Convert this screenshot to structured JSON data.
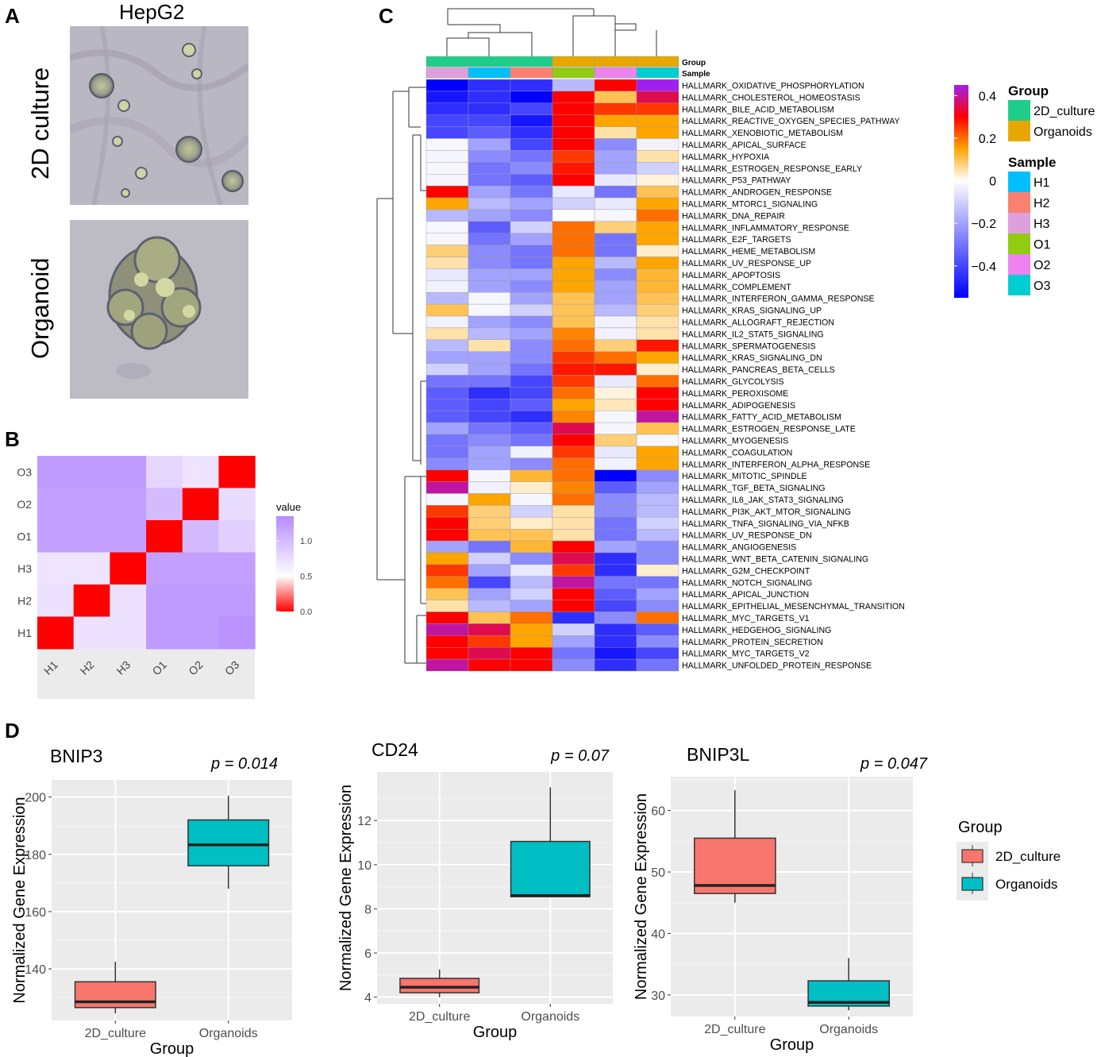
{
  "panels": {
    "a": "A",
    "b": "B",
    "c": "C",
    "d": "D"
  },
  "panel_a": {
    "title": "HepG2",
    "row_labels": [
      "2D culture",
      "Organoid"
    ]
  },
  "colors": {
    "group_2d": "#20CC8A",
    "group_org": "#E6A800",
    "H1": "#00BFFF",
    "H2": "#FA8072",
    "H3": "#DDA0DD",
    "O1": "#8FCC12",
    "O2": "#EE82EE",
    "O3": "#00CED1",
    "box_2d": "#F8766D",
    "box_org": "#00BFC4",
    "panel_bg": "#EBEBEB"
  },
  "chart_data": [
    {
      "id": "B",
      "type": "heatmap",
      "x_labels": [
        "H1",
        "H2",
        "H3",
        "O1",
        "O2",
        "O3"
      ],
      "y_labels": [
        "O3",
        "O2",
        "O1",
        "H3",
        "H2",
        "H1"
      ],
      "values": [
        [
          1.25,
          1.25,
          1.25,
          0.8,
          0.7,
          0.0
        ],
        [
          1.2,
          1.2,
          1.2,
          1.0,
          0.0,
          0.75
        ],
        [
          1.2,
          1.2,
          1.2,
          0.0,
          1.0,
          0.85
        ],
        [
          0.7,
          0.7,
          0.0,
          1.2,
          1.2,
          1.2
        ],
        [
          0.72,
          0.0,
          0.72,
          1.25,
          1.25,
          1.25
        ],
        [
          0.0,
          0.72,
          0.72,
          1.25,
          1.25,
          1.3
        ]
      ],
      "legend_title": "value",
      "legend_ticks": [
        "1.0",
        "0.5",
        "0.0"
      ],
      "range": [
        0,
        1.35
      ]
    },
    {
      "id": "C",
      "type": "heatmap",
      "columns": [
        "H3",
        "H1",
        "H2",
        "O1",
        "O2",
        "O3"
      ],
      "column_groups": [
        "2D_culture",
        "2D_culture",
        "2D_culture",
        "Organoids",
        "Organoids",
        "Organoids"
      ],
      "annotation_row_labels": [
        "Group",
        "Sample"
      ],
      "rows": [
        "HALLMARK_OXIDATIVE_PHOSPHORYLATION",
        "HALLMARK_CHOLESTEROL_HOMEOSTASIS",
        "HALLMARK_BILE_ACID_METABOLISM",
        "HALLMARK_REACTIVE_OXYGEN_SPECIES_PATHWAY",
        "HALLMARK_XENOBIOTIC_METABOLISM",
        "HALLMARK_APICAL_SURFACE",
        "HALLMARK_HYPOXIA",
        "HALLMARK_ESTROGEN_RESPONSE_EARLY",
        "HALLMARK_P53_PATHWAY",
        "HALLMARK_ANDROGEN_RESPONSE",
        "HALLMARK_MTORC1_SIGNALING",
        "HALLMARK_DNA_REPAIR",
        "HALLMARK_INFLAMMATORY_RESPONSE",
        "HALLMARK_E2F_TARGETS",
        "HALLMARK_HEME_METABOLISM",
        "HALLMARK_UV_RESPONSE_UP",
        "HALLMARK_APOPTOSIS",
        "HALLMARK_COMPLEMENT",
        "HALLMARK_INTERFERON_GAMMA_RESPONSE",
        "HALLMARK_KRAS_SIGNALING_UP",
        "HALLMARK_ALLOGRAFT_REJECTION",
        "HALLMARK_IL2_STAT5_SIGNALING",
        "HALLMARK_SPERMATOGENESIS",
        "HALLMARK_KRAS_SIGNALING_DN",
        "HALLMARK_PANCREAS_BETA_CELLS",
        "HALLMARK_GLYCOLYSIS",
        "HALLMARK_PEROXISOME",
        "HALLMARK_ADIPOGENESIS",
        "HALLMARK_FATTY_ACID_METABOLISM",
        "HALLMARK_ESTROGEN_RESPONSE_LATE",
        "HALLMARK_MYOGENESIS",
        "HALLMARK_COAGULATION",
        "HALLMARK_INTERFERON_ALPHA_RESPONSE",
        "HALLMARK_MITOTIC_SPINDLE",
        "HALLMARK_TGF_BETA_SIGNALING",
        "HALLMARK_IL6_JAK_STAT3_SIGNALING",
        "HALLMARK_PI3K_AKT_MTOR_SIGNALING",
        "HALLMARK_TNFA_SIGNALING_VIA_NFKB",
        "HALLMARK_UV_RESPONSE_DN",
        "HALLMARK_ANGIOGENESIS",
        "HALLMARK_WNT_BETA_CATENIN_SIGNALING",
        "HALLMARK_G2M_CHECKPOINT",
        "HALLMARK_NOTCH_SIGNALING",
        "HALLMARK_APICAL_JUNCTION",
        "HALLMARK_EPITHELIAL_MESENCHYMAL_TRANSITION",
        "HALLMARK_MYC_TARGETS_V1",
        "HALLMARK_HEDGEHOG_SIGNALING",
        "HALLMARK_PROTEIN_SECRETION",
        "HALLMARK_MYC_TARGETS_V2",
        "HALLMARK_UNFOLDED_PROTEIN_RESPONSE"
      ],
      "values": [
        [
          -0.55,
          -0.45,
          -0.45,
          -0.15,
          0.3,
          0.45
        ],
        [
          -0.5,
          -0.45,
          -0.55,
          0.3,
          0.1,
          0.35
        ],
        [
          -0.45,
          -0.45,
          -0.4,
          0.3,
          0.25,
          0.25
        ],
        [
          -0.4,
          -0.4,
          -0.5,
          0.3,
          0.15,
          0.15
        ],
        [
          -0.4,
          -0.35,
          -0.45,
          0.3,
          0.05,
          0.15
        ],
        [
          -0.02,
          -0.2,
          -0.4,
          0.3,
          -0.25,
          -0.03
        ],
        [
          -0.02,
          -0.25,
          -0.3,
          0.25,
          -0.2,
          0.05
        ],
        [
          -0.02,
          -0.3,
          -0.25,
          0.28,
          -0.2,
          -0.1
        ],
        [
          -0.02,
          -0.3,
          -0.35,
          0.3,
          -0.05,
          0.02
        ],
        [
          0.3,
          -0.2,
          -0.3,
          -0.05,
          -0.3,
          0.1
        ],
        [
          0.15,
          -0.15,
          -0.2,
          -0.1,
          -0.05,
          0.15
        ],
        [
          -0.15,
          -0.2,
          -0.25,
          0.0,
          -0.02,
          0.2
        ],
        [
          -0.02,
          -0.35,
          -0.1,
          0.2,
          0.08,
          0.15
        ],
        [
          -0.02,
          -0.3,
          -0.2,
          0.2,
          -0.3,
          0.15
        ],
        [
          0.08,
          -0.25,
          -0.3,
          0.2,
          -0.3,
          0.03
        ],
        [
          0.05,
          -0.25,
          -0.3,
          0.15,
          -0.15,
          0.15
        ],
        [
          -0.05,
          -0.2,
          -0.2,
          0.15,
          -0.25,
          0.12
        ],
        [
          -0.03,
          -0.2,
          -0.25,
          0.15,
          -0.2,
          0.12
        ],
        [
          -0.15,
          -0.02,
          -0.2,
          0.1,
          -0.2,
          0.1
        ],
        [
          0.1,
          -0.02,
          -0.1,
          0.1,
          -0.15,
          0.08
        ],
        [
          -0.03,
          -0.2,
          -0.25,
          0.1,
          -0.03,
          0.05
        ],
        [
          0.05,
          -0.15,
          -0.2,
          0.18,
          -0.03,
          0.05
        ],
        [
          -0.15,
          0.05,
          -0.25,
          0.2,
          0.08,
          0.28
        ],
        [
          -0.2,
          -0.2,
          -0.25,
          0.25,
          0.2,
          0.15
        ],
        [
          -0.1,
          -0.2,
          -0.3,
          0.28,
          0.28,
          0.03
        ],
        [
          -0.3,
          -0.3,
          -0.4,
          0.25,
          -0.05,
          0.2
        ],
        [
          -0.35,
          -0.45,
          -0.4,
          0.2,
          0.02,
          0.3
        ],
        [
          -0.35,
          -0.4,
          -0.35,
          0.15,
          0.04,
          0.3
        ],
        [
          -0.35,
          -0.4,
          -0.45,
          0.18,
          -0.02,
          0.4
        ],
        [
          -0.2,
          -0.3,
          -0.35,
          0.35,
          -0.02,
          0.1
        ],
        [
          -0.3,
          -0.25,
          -0.3,
          0.3,
          0.08,
          -0.02
        ],
        [
          -0.3,
          -0.2,
          -0.03,
          0.25,
          -0.05,
          0.15
        ],
        [
          -0.25,
          -0.2,
          -0.25,
          0.2,
          -0.03,
          0.15
        ],
        [
          0.3,
          -0.02,
          0.12,
          0.2,
          -0.55,
          -0.25
        ],
        [
          0.4,
          -0.03,
          0.03,
          0.18,
          -0.35,
          -0.2
        ],
        [
          -0.02,
          0.15,
          -0.02,
          0.2,
          -0.25,
          -0.15
        ],
        [
          0.25,
          0.08,
          -0.1,
          0.05,
          -0.25,
          -0.15
        ],
        [
          0.3,
          0.08,
          0.03,
          0.05,
          -0.3,
          -0.1
        ],
        [
          0.3,
          0.1,
          0.1,
          0.05,
          -0.3,
          -0.15
        ],
        [
          -0.2,
          -0.3,
          0.12,
          0.3,
          -0.2,
          -0.25
        ],
        [
          0.15,
          -0.1,
          -0.25,
          0.35,
          -0.45,
          -0.25
        ],
        [
          0.25,
          -0.2,
          -0.05,
          0.25,
          -0.45,
          0.03
        ],
        [
          0.2,
          -0.4,
          -0.15,
          0.4,
          -0.3,
          -0.3
        ],
        [
          0.1,
          -0.2,
          -0.1,
          0.3,
          -0.35,
          -0.2
        ],
        [
          0.05,
          -0.15,
          -0.2,
          0.3,
          -0.4,
          -0.25
        ],
        [
          0.3,
          0.1,
          0.2,
          -0.45,
          -0.25,
          0.2
        ],
        [
          0.4,
          0.35,
          0.15,
          -0.1,
          -0.45,
          -0.35
        ],
        [
          0.3,
          0.25,
          0.15,
          -0.2,
          -0.45,
          -0.25
        ],
        [
          0.3,
          0.35,
          0.3,
          -0.3,
          -0.5,
          -0.4
        ],
        [
          0.4,
          0.3,
          0.3,
          -0.25,
          -0.45,
          -0.3
        ]
      ],
      "colorbar_ticks": [
        "0.4",
        "0.2",
        "0",
        "−0.2",
        "−0.4"
      ],
      "colorbar_tick_values": [
        0.4,
        0.2,
        0,
        -0.2,
        -0.4
      ],
      "range": [
        -0.55,
        0.45
      ],
      "legend": {
        "group_title": "Group",
        "groups": [
          "2D_culture",
          "Organoids"
        ],
        "sample_title": "Sample",
        "samples": [
          "H1",
          "H2",
          "H3",
          "O1",
          "O2",
          "O3"
        ]
      }
    },
    {
      "id": "D1",
      "type": "box",
      "title": "BNIP3",
      "pvalue": "p = 0.014",
      "xlabel": "Group",
      "ylabel": "Normalized Gene Expression",
      "categories": [
        "2D_culture",
        "Organoids"
      ],
      "ylim": [
        122,
        206
      ],
      "yticks": [
        140,
        160,
        180,
        200
      ],
      "boxes": [
        {
          "whisker_low": 124.5,
          "q1": 126.5,
          "median": 128.5,
          "q3": 135.5,
          "whisker_high": 142.5
        },
        {
          "whisker_low": 168,
          "q1": 176,
          "median": 183.3,
          "q3": 192,
          "whisker_high": 200.5
        }
      ]
    },
    {
      "id": "D2",
      "type": "box",
      "title": "CD24",
      "pvalue": "p = 0.07",
      "xlabel": "Group",
      "ylabel": "Normalized Gene Expression",
      "categories": [
        "2D_culture",
        "Organoids"
      ],
      "ylim": [
        3.7,
        14.2
      ],
      "yticks": [
        4,
        6,
        8,
        10,
        12
      ],
      "boxes": [
        {
          "whisker_low": 4.0,
          "q1": 4.2,
          "median": 4.45,
          "q3": 4.85,
          "whisker_high": 5.25
        },
        {
          "whisker_low": 8.55,
          "q1": 8.55,
          "median": 8.6,
          "q3": 11.05,
          "whisker_high": 13.5
        }
      ]
    },
    {
      "id": "D3",
      "type": "box",
      "title": "BNIP3L",
      "pvalue": "p = 0.047",
      "xlabel": "Group",
      "ylabel": "Normalized Gene Expression",
      "categories": [
        "2D_culture",
        "Organoids"
      ],
      "ylim": [
        26.5,
        65.5
      ],
      "yticks": [
        30,
        40,
        50,
        60
      ],
      "boxes": [
        {
          "whisker_low": 45,
          "q1": 46.5,
          "median": 47.8,
          "q3": 55.5,
          "whisker_high": 63.3
        },
        {
          "whisker_low": 27.5,
          "q1": 28.2,
          "median": 28.8,
          "q3": 32.3,
          "whisker_high": 36
        }
      ],
      "legend": {
        "title": "Group",
        "items": [
          "2D_culture",
          "Organoids"
        ]
      }
    }
  ]
}
